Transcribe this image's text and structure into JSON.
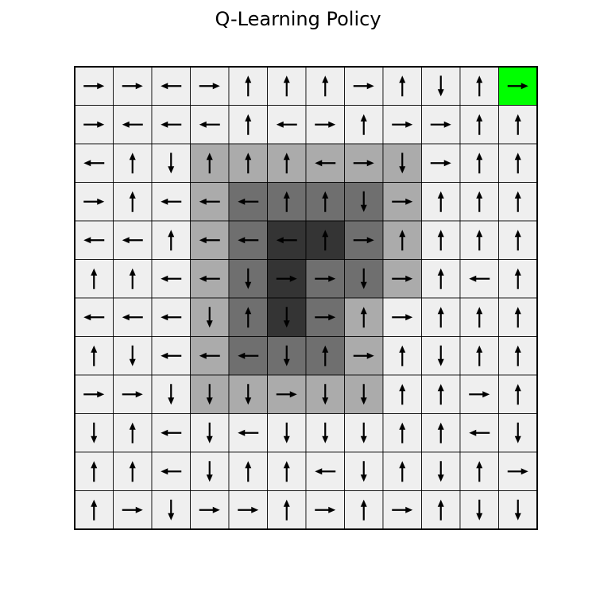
{
  "title": "Q-Learning Policy",
  "grid": {
    "rows": 12,
    "cols": 12,
    "goal": {
      "row": 0,
      "col": 11
    },
    "shade_colors": {
      "0": "#efefef",
      "1": "#ababab",
      "2": "#6f6f6f",
      "3": "#343434"
    },
    "goal_color": "#00ff00",
    "arrow_color": "#000000",
    "line_color": "#000000",
    "shading": [
      [
        0,
        0,
        0,
        0,
        0,
        0,
        0,
        0,
        0,
        0,
        0,
        0
      ],
      [
        0,
        0,
        0,
        0,
        0,
        0,
        0,
        0,
        0,
        0,
        0,
        0
      ],
      [
        0,
        0,
        0,
        1,
        1,
        1,
        1,
        1,
        1,
        0,
        0,
        0
      ],
      [
        0,
        0,
        0,
        1,
        2,
        2,
        2,
        2,
        1,
        0,
        0,
        0
      ],
      [
        0,
        0,
        0,
        1,
        2,
        3,
        3,
        2,
        1,
        0,
        0,
        0
      ],
      [
        0,
        0,
        0,
        1,
        2,
        3,
        2,
        2,
        1,
        0,
        0,
        0
      ],
      [
        0,
        0,
        0,
        1,
        2,
        3,
        2,
        1,
        0,
        0,
        0,
        0
      ],
      [
        0,
        0,
        0,
        1,
        2,
        2,
        2,
        1,
        0,
        0,
        0,
        0
      ],
      [
        0,
        0,
        0,
        1,
        1,
        1,
        1,
        1,
        0,
        0,
        0,
        0
      ],
      [
        0,
        0,
        0,
        0,
        0,
        0,
        0,
        0,
        0,
        0,
        0,
        0
      ],
      [
        0,
        0,
        0,
        0,
        0,
        0,
        0,
        0,
        0,
        0,
        0,
        0
      ],
      [
        0,
        0,
        0,
        0,
        0,
        0,
        0,
        0,
        0,
        0,
        0,
        0
      ]
    ],
    "actions": [
      [
        "R",
        "R",
        "L",
        "R",
        "U",
        "U",
        "U",
        "R",
        "U",
        "D",
        "U",
        "R"
      ],
      [
        "R",
        "L",
        "L",
        "L",
        "U",
        "L",
        "R",
        "U",
        "R",
        "R",
        "U",
        "U"
      ],
      [
        "L",
        "U",
        "D",
        "U",
        "U",
        "U",
        "L",
        "R",
        "D",
        "R",
        "U",
        "U"
      ],
      [
        "R",
        "U",
        "L",
        "L",
        "L",
        "U",
        "U",
        "D",
        "R",
        "U",
        "U",
        "U"
      ],
      [
        "L",
        "L",
        "U",
        "L",
        "L",
        "L",
        "U",
        "R",
        "U",
        "U",
        "U",
        "U"
      ],
      [
        "U",
        "U",
        "L",
        "L",
        "D",
        "R",
        "R",
        "D",
        "R",
        "U",
        "L",
        "U"
      ],
      [
        "L",
        "L",
        "L",
        "D",
        "U",
        "D",
        "R",
        "U",
        "R",
        "U",
        "U",
        "U"
      ],
      [
        "U",
        "D",
        "L",
        "L",
        "L",
        "D",
        "U",
        "R",
        "U",
        "D",
        "U",
        "U"
      ],
      [
        "R",
        "R",
        "D",
        "D",
        "D",
        "R",
        "D",
        "D",
        "U",
        "U",
        "R",
        "U"
      ],
      [
        "D",
        "U",
        "L",
        "D",
        "L",
        "D",
        "D",
        "D",
        "U",
        "U",
        "L",
        "D"
      ],
      [
        "U",
        "U",
        "L",
        "D",
        "U",
        "U",
        "L",
        "D",
        "U",
        "D",
        "U",
        "R"
      ],
      [
        "U",
        "R",
        "D",
        "R",
        "R",
        "U",
        "R",
        "U",
        "R",
        "U",
        "D",
        "D"
      ]
    ]
  }
}
